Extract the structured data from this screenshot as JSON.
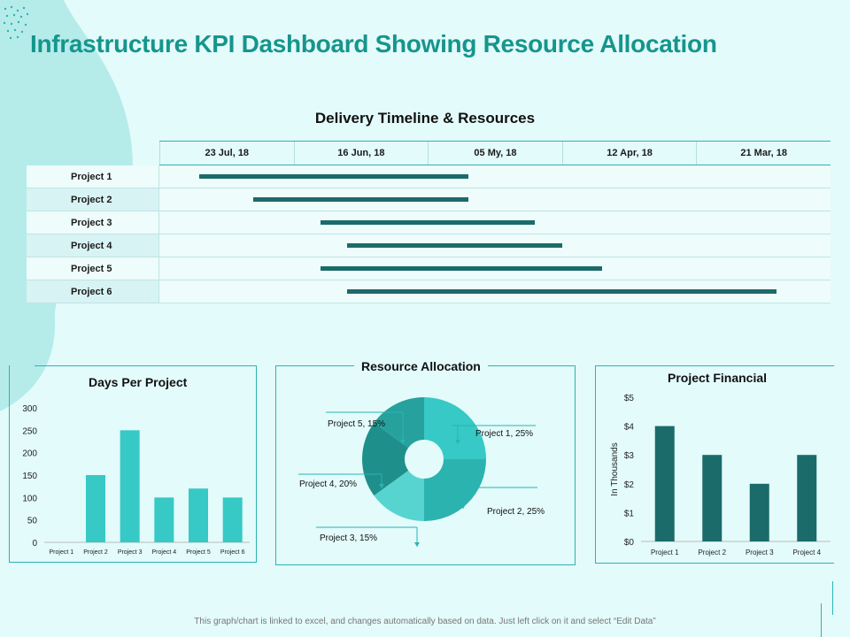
{
  "title": "Infrastructure KPI Dashboard Showing Resource Allocation",
  "footer": "This graph/chart is linked to excel, and changes automatically based on data. Just left click on it and select “Edit Data”",
  "colors": {
    "accent": "#16958c",
    "bar_light": "#36c9c6",
    "bar_dark": "#1b6b6b"
  },
  "chart_data": [
    {
      "type": "gantt",
      "title": "Delivery Timeline & Resources",
      "date_columns": [
        "23 Jul, 18",
        "16 Jun, 18",
        "05 My, 18",
        "12 Apr, 18",
        "21 Mar, 18"
      ],
      "tasks": [
        {
          "name": "Project 1",
          "start": 0.3,
          "end": 2.3
        },
        {
          "name": "Project 2",
          "start": 0.7,
          "end": 2.3
        },
        {
          "name": "Project 3",
          "start": 1.2,
          "end": 2.8
        },
        {
          "name": "Project 4",
          "start": 1.4,
          "end": 3.0
        },
        {
          "name": "Project 5",
          "start": 1.2,
          "end": 3.3
        },
        {
          "name": "Project 6",
          "start": 1.4,
          "end": 4.6
        }
      ]
    },
    {
      "type": "bar",
      "title": "Days Per Project",
      "categories": [
        "Project 1",
        "Project 2",
        "Project 3",
        "Project 4",
        "Project 5",
        "Project 6"
      ],
      "values": [
        0,
        150,
        250,
        100,
        120,
        100
      ],
      "ylim": [
        0,
        300
      ],
      "yticks": [
        "0",
        "50",
        "100",
        "150",
        "200",
        "250",
        "300"
      ]
    },
    {
      "type": "pie",
      "title": "Resource Allocation",
      "slices": [
        {
          "label": "Project 1, 25%",
          "value": 25,
          "color": "#36c9c6"
        },
        {
          "label": "Project 2, 25%",
          "value": 25,
          "color": "#2bb3b0"
        },
        {
          "label": "Project 3, 15%",
          "value": 15,
          "color": "#57d4cf"
        },
        {
          "label": "Project 4, 20%",
          "value": 20,
          "color": "#1f8f8c"
        },
        {
          "label": "Project 5, 15%",
          "value": 15,
          "color": "#27a19d"
        }
      ]
    },
    {
      "type": "bar",
      "title": "Project Financial",
      "ylabel": "In Thousands",
      "categories": [
        "Project 1",
        "Project 2",
        "Project 3",
        "Project 4"
      ],
      "values": [
        4,
        3,
        2,
        3
      ],
      "ylim": [
        0,
        5
      ],
      "yticks": [
        "$0",
        "$1",
        "$2",
        "$3",
        "$4",
        "$5"
      ]
    }
  ]
}
